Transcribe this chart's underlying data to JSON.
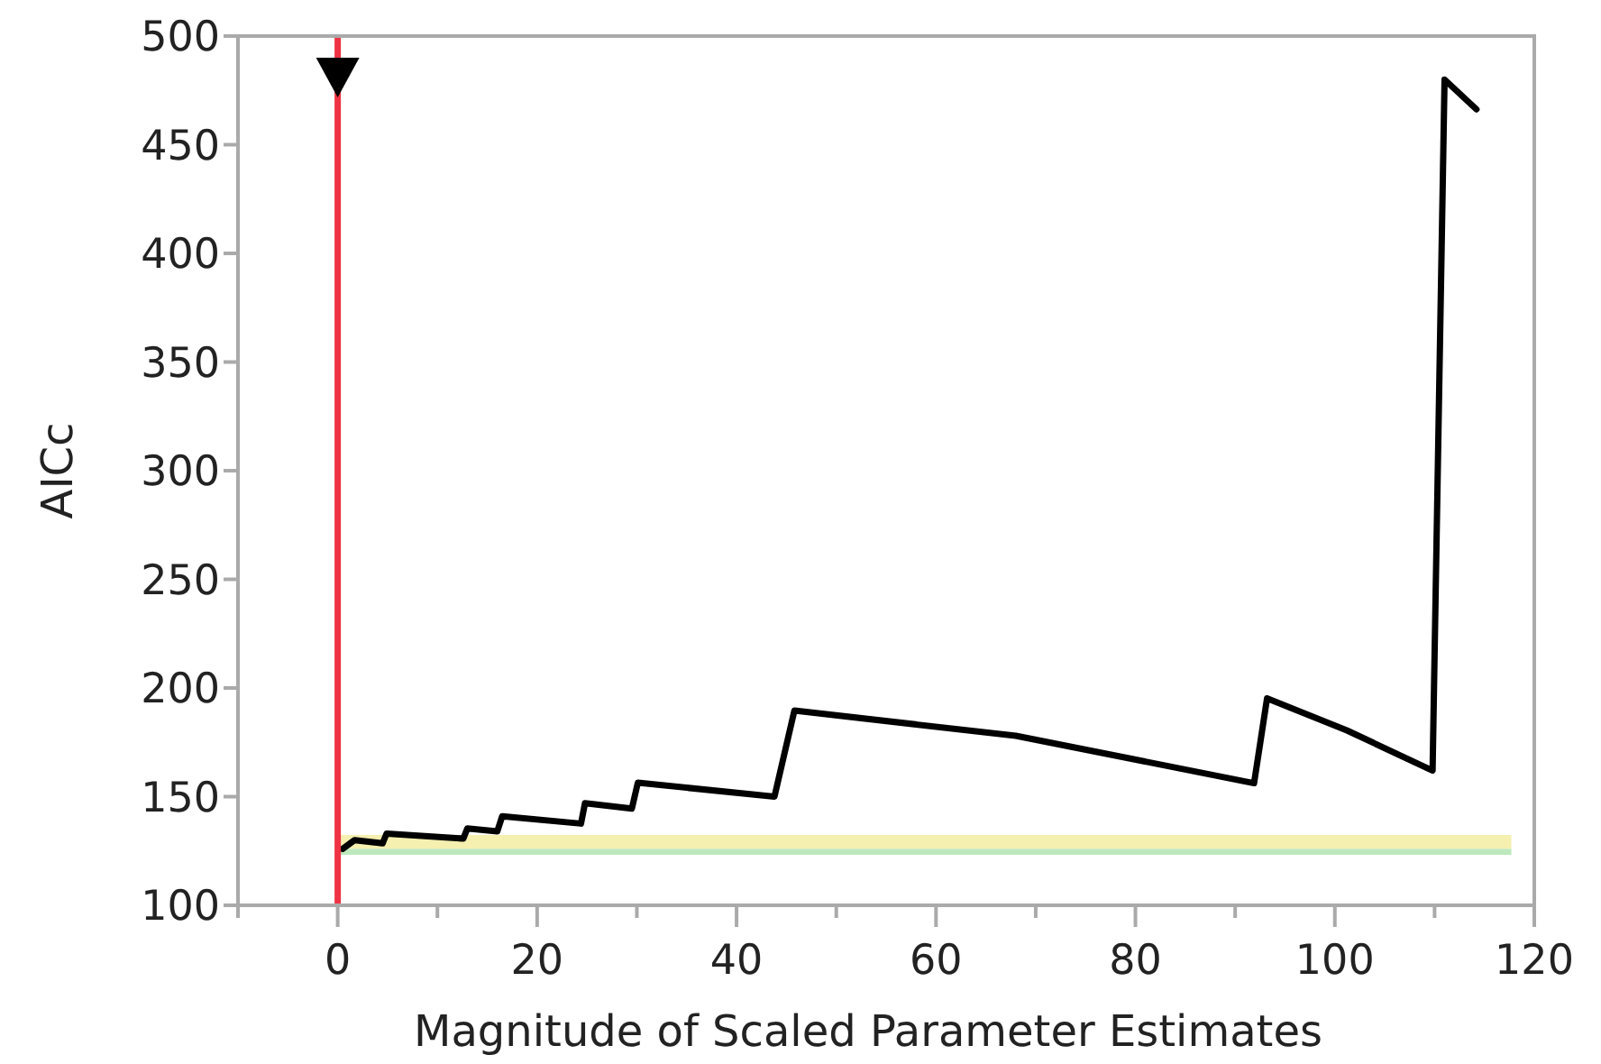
{
  "chart_data": {
    "type": "line",
    "xlabel": "Magnitude of Scaled Parameter Estimates",
    "ylabel": "AICc",
    "xlim": [
      -10,
      120
    ],
    "ylim": [
      100,
      500
    ],
    "xticks": [
      {
        "value": -10,
        "label": null
      },
      0,
      {
        "value": 10,
        "label": null
      },
      20,
      {
        "value": 30,
        "label": null
      },
      40,
      {
        "value": 50,
        "label": null
      },
      60,
      {
        "value": 70,
        "label": null
      },
      80,
      {
        "value": 90,
        "label": null
      },
      100,
      {
        "value": 110,
        "label": null
      },
      120
    ],
    "yticks": [
      100,
      150,
      200,
      250,
      300,
      350,
      400,
      450,
      500
    ],
    "grid": false,
    "marker": "none",
    "line_style": "solid",
    "series": [
      {
        "color": "#000000",
        "x": [
          0.5,
          1.7,
          4.5,
          4.9,
          12.6,
          13,
          16,
          16.5,
          24.4,
          24.8,
          29.5,
          30.1,
          43.8,
          45.8,
          68,
          91.9,
          93.2,
          101.2,
          109.8,
          111,
          114.2
        ],
        "values": [
          126,
          130,
          128.5,
          133,
          130.7,
          135.4,
          134,
          141,
          137.6,
          147,
          144.5,
          156.4,
          150,
          189.6,
          178,
          156.2,
          195.2,
          180.5,
          162,
          480,
          466.3
        ]
      }
    ],
    "bands": [
      {
        "axis": "y",
        "from": 126,
        "to": 132.4,
        "color": "#f5efb0"
      },
      {
        "axis": "y",
        "from": 123.2,
        "to": 126,
        "color": "#bde8bd"
      }
    ],
    "ref_lines": [
      {
        "axis": "x",
        "value": 0,
        "color": "#ee3344"
      }
    ]
  }
}
